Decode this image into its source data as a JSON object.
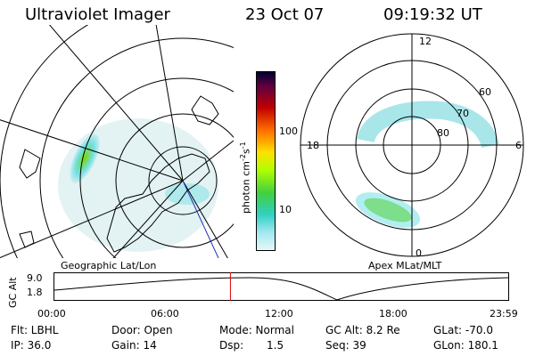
{
  "header": {
    "title": "Ultraviolet Imager",
    "date": "23 Oct 07",
    "time": "09:19:32 UT"
  },
  "panels": {
    "left_label": "Geographic Lat/Lon",
    "right_label": "Apex MLat/MLT"
  },
  "polar_plot": {
    "mlt_labels": {
      "top": "12",
      "left": "18",
      "right": "6",
      "bottom": "0"
    },
    "lat_labels": [
      "60",
      "70",
      "80"
    ]
  },
  "colorbar": {
    "unit_label": "photon cm",
    "unit_sup1": "-2",
    "unit_s": "s",
    "unit_sup2": "-1",
    "ticks": [
      "100",
      "10"
    ]
  },
  "timeline": {
    "ylabel": "GC Alt",
    "y_ticks": [
      "9.0",
      "1.8"
    ],
    "x_ticks": [
      "00:00",
      "06:00",
      "12:00",
      "18:00",
      "23:59"
    ],
    "current_time_fraction": 0.388
  },
  "info": {
    "flt": "Flt: LBHL",
    "ip": "IP: 36.0",
    "door": "Door: Open",
    "gain": "Gain: 14",
    "mode": "Mode: Normal",
    "dsp": "Dsp:",
    "dsp_val": "1.5",
    "gcalt": "GC Alt: 8.2 Re",
    "seq": "Seq: 39",
    "glat": "GLat: -70.0",
    "glon": "GLon: 180.1"
  },
  "colors": {
    "accent_line": "#dd0000",
    "aurora_cyan": "#7fe3e8",
    "aurora_green": "#7ad800"
  }
}
